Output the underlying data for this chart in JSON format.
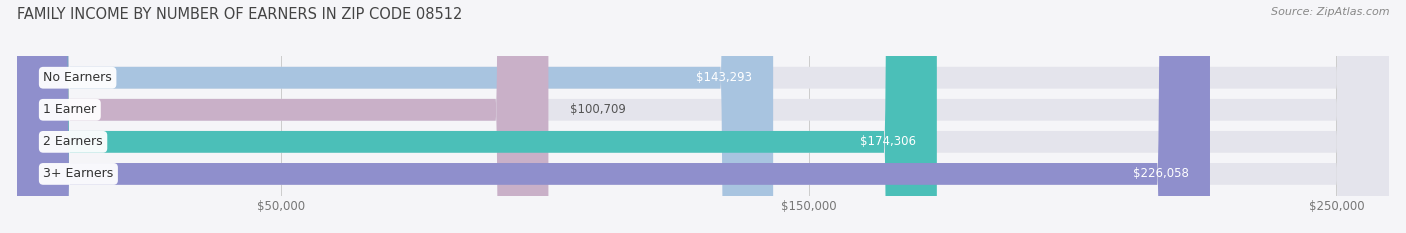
{
  "title": "FAMILY INCOME BY NUMBER OF EARNERS IN ZIP CODE 08512",
  "source": "Source: ZipAtlas.com",
  "categories": [
    "No Earners",
    "1 Earner",
    "2 Earners",
    "3+ Earners"
  ],
  "values": [
    143293,
    100709,
    174306,
    226058
  ],
  "labels": [
    "$143,293",
    "$100,709",
    "$174,306",
    "$226,058"
  ],
  "bar_colors": [
    "#a8c4e0",
    "#c9b0c8",
    "#4bbfb8",
    "#8f8fcc"
  ],
  "bar_bg_color": "#e4e4ec",
  "xmin": 0,
  "xmax": 260000,
  "xticks": [
    50000,
    150000,
    250000
  ],
  "xticklabels": [
    "$50,000",
    "$150,000",
    "$250,000"
  ],
  "title_fontsize": 10.5,
  "source_fontsize": 8,
  "label_fontsize": 8.5,
  "category_fontsize": 9,
  "background_color": "#f5f5f8",
  "bar_height": 0.68,
  "label_inside_color": "#ffffff",
  "label_outside_color": "#555555",
  "inside_threshold": 130000
}
